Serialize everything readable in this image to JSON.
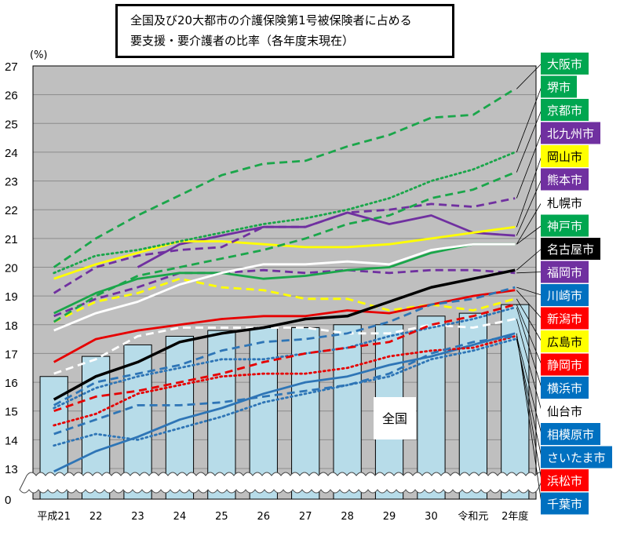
{
  "chart_data": {
    "type": "bar+line",
    "title_lines": [
      "全国及び20大都市の介護保険第1号被保険者に占める",
      "要支援・要介護者の比率（各年度末現在）"
    ],
    "ylabel": "(%)",
    "ylim": [
      13,
      27
    ],
    "y_break": "0 to 13",
    "y_ticks": [
      "27",
      "26",
      "25",
      "24",
      "23",
      "22",
      "21",
      "20",
      "19",
      "18",
      "17",
      "16",
      "15",
      "14",
      "13",
      "0"
    ],
    "grid": true,
    "categories": [
      "平成21",
      "22",
      "23",
      "24",
      "25",
      "26",
      "27",
      "28",
      "29",
      "30",
      "令和元",
      "2年度"
    ],
    "bar_series": {
      "name": "全国",
      "color": "#b7dce9",
      "values": [
        16.2,
        16.9,
        17.3,
        17.6,
        17.8,
        17.9,
        17.9,
        18.0,
        18.0,
        18.3,
        18.4,
        18.7
      ]
    },
    "series": [
      {
        "name": "大阪市",
        "color": "#1aa64a",
        "style": "dashed",
        "label_bg": "#00a650",
        "label_fg": "#ffffff",
        "values": [
          20.0,
          21.0,
          21.8,
          22.5,
          23.2,
          23.6,
          23.7,
          24.2,
          24.6,
          25.2,
          25.3,
          26.2
        ]
      },
      {
        "name": "堺市",
        "color": "#1aa64a",
        "style": "dotted",
        "label_bg": "#00a650",
        "label_fg": "#ffffff",
        "values": [
          19.8,
          20.4,
          20.6,
          20.9,
          21.2,
          21.5,
          21.7,
          22.0,
          22.4,
          23.0,
          23.4,
          24.0
        ]
      },
      {
        "name": "京都市",
        "color": "#1aa64a",
        "style": "dashed",
        "label_bg": "#00a650",
        "label_fg": "#ffffff",
        "values": [
          18.1,
          19.0,
          19.7,
          20.0,
          20.3,
          20.6,
          21.0,
          21.5,
          21.8,
          22.4,
          22.7,
          23.3
        ]
      },
      {
        "name": "北九州市",
        "color": "#7030a0",
        "style": "dashed",
        "label_bg": "#7030a0",
        "label_fg": "#ffffff",
        "values": [
          19.1,
          20.0,
          20.4,
          20.6,
          20.7,
          21.4,
          21.4,
          21.9,
          22.0,
          22.2,
          22.1,
          22.4
        ]
      },
      {
        "name": "岡山市",
        "color": "#ffff00",
        "style": "solid",
        "label_bg": "#ffff00",
        "label_fg": "#000000",
        "values": [
          19.6,
          20.1,
          20.5,
          20.9,
          20.9,
          20.8,
          20.7,
          20.7,
          20.8,
          21.0,
          21.2,
          21.4
        ]
      },
      {
        "name": "熊本市",
        "color": "#7030a0",
        "style": "solid",
        "label_bg": "#7030a0",
        "label_fg": "#ffffff",
        "values": [
          null,
          null,
          20.0,
          20.8,
          21.1,
          21.4,
          21.4,
          21.9,
          21.5,
          21.8,
          21.2,
          21.1
        ]
      },
      {
        "name": "札幌市",
        "color": "#ffffff",
        "style": "solid",
        "label_bg": "#ffffff",
        "label_fg": "#000000",
        "values": [
          17.8,
          18.4,
          18.8,
          19.4,
          19.8,
          20.1,
          20.1,
          20.2,
          20.1,
          20.6,
          20.8,
          20.8
        ]
      },
      {
        "name": "神戸市",
        "color": "#1aa64a",
        "style": "solid",
        "label_bg": "#00a650",
        "label_fg": "#ffffff",
        "values": [
          18.4,
          19.1,
          19.6,
          19.8,
          19.8,
          19.6,
          19.7,
          19.9,
          20.0,
          20.5,
          20.8,
          20.8
        ]
      },
      {
        "name": "名古屋市",
        "color": "#000000",
        "style": "solid",
        "label_bg": "#000000",
        "label_fg": "#ffffff",
        "values": [
          15.4,
          16.2,
          16.7,
          17.4,
          17.7,
          17.9,
          18.2,
          18.3,
          18.8,
          19.3,
          19.6,
          19.9
        ]
      },
      {
        "name": "福岡市",
        "color": "#7030a0",
        "style": "dashed",
        "label_bg": "#7030a0",
        "label_fg": "#ffffff",
        "values": [
          18.3,
          18.9,
          19.3,
          19.8,
          19.8,
          19.9,
          19.8,
          19.9,
          19.8,
          19.9,
          19.9,
          19.8
        ]
      },
      {
        "name": "川崎市",
        "color": "#2e75b6",
        "style": "dashed",
        "label_bg": "#0070c0",
        "label_fg": "#ffffff",
        "values": [
          15.2,
          16.0,
          16.3,
          16.6,
          17.1,
          17.4,
          17.5,
          17.7,
          18.1,
          18.7,
          18.9,
          19.3
        ]
      },
      {
        "name": "新潟市",
        "color": "#e60000",
        "style": "solid",
        "label_bg": "#ff0000",
        "label_fg": "#ffffff",
        "values": [
          16.7,
          17.5,
          17.8,
          18.0,
          18.2,
          18.3,
          18.3,
          18.5,
          18.4,
          18.7,
          19.0,
          19.2
        ]
      },
      {
        "name": "広島市",
        "color": "#ffff00",
        "style": "dashed",
        "label_bg": "#ffff00",
        "label_fg": "#000000",
        "values": [
          18.1,
          18.8,
          19.1,
          19.6,
          19.3,
          19.2,
          18.9,
          18.9,
          18.5,
          18.7,
          18.5,
          18.9
        ]
      },
      {
        "name": "静岡市",
        "color": "#e60000",
        "style": "dashed",
        "label_bg": "#ff0000",
        "label_fg": "#ffffff",
        "values": [
          15.0,
          15.5,
          15.7,
          16.0,
          16.3,
          16.7,
          17.0,
          17.2,
          17.4,
          18.0,
          18.3,
          18.7
        ]
      },
      {
        "name": "横浜市",
        "color": "#2e75b6",
        "style": "dotted",
        "label_bg": "#0070c0",
        "label_fg": "#ffffff",
        "values": [
          15.1,
          15.8,
          16.2,
          16.5,
          16.8,
          16.8,
          17.0,
          17.2,
          17.6,
          17.9,
          18.2,
          18.6
        ]
      },
      {
        "name": "仙台市",
        "color": "#ffffff",
        "style": "dashed",
        "label_bg": "#ffffff",
        "label_fg": "#000000",
        "values": [
          16.3,
          16.8,
          17.6,
          17.9,
          17.9,
          17.9,
          17.9,
          17.7,
          17.7,
          18.0,
          17.9,
          18.2
        ]
      },
      {
        "name": "相模原市",
        "color": "#2e75b6",
        "style": "dashed",
        "label_bg": "#0070c0",
        "label_fg": "#ffffff",
        "values": [
          14.2,
          14.7,
          15.2,
          15.2,
          15.3,
          15.5,
          15.7,
          15.9,
          16.3,
          17.0,
          17.4,
          17.6
        ]
      },
      {
        "name": "さいたま市",
        "color": "#2e75b6",
        "style": "dotted",
        "label_bg": "#0070c0",
        "label_fg": "#ffffff",
        "values": [
          13.8,
          14.2,
          14.0,
          14.4,
          14.8,
          15.3,
          15.6,
          15.9,
          16.2,
          16.8,
          17.1,
          17.5
        ]
      },
      {
        "name": "浜松市",
        "color": "#e60000",
        "style": "dotted",
        "label_bg": "#ff0000",
        "label_fg": "#ffffff",
        "values": [
          14.5,
          14.9,
          15.6,
          15.9,
          16.2,
          16.3,
          16.3,
          16.5,
          16.9,
          17.1,
          17.2,
          17.6
        ]
      },
      {
        "name": "千葉市",
        "color": "#2e75b6",
        "style": "solid",
        "label_bg": "#0070c0",
        "label_fg": "#ffffff",
        "values": [
          12.9,
          13.6,
          14.1,
          14.7,
          15.1,
          15.6,
          16.0,
          16.2,
          16.6,
          16.9,
          17.3,
          17.7
        ]
      }
    ]
  }
}
